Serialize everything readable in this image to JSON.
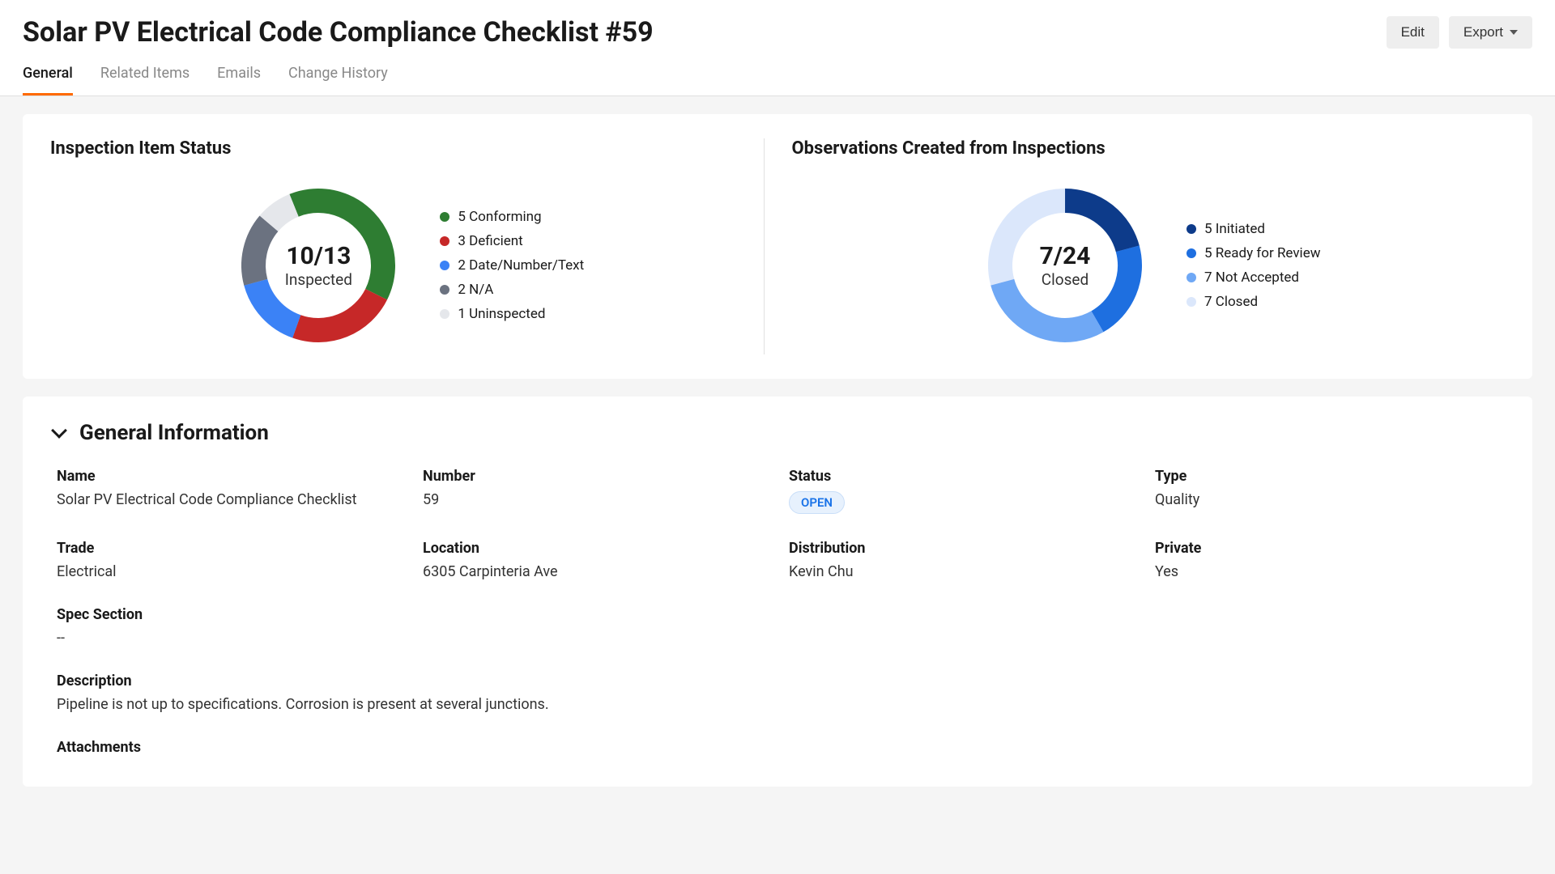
{
  "header": {
    "title": "Solar PV Electrical Code Compliance Checklist #59",
    "edit_label": "Edit",
    "export_label": "Export"
  },
  "tabs": {
    "general": "General",
    "related": "Related Items",
    "emails": "Emails",
    "history": "Change History",
    "active": "general"
  },
  "inspection_chart": {
    "title": "Inspection Item Status",
    "center_big": "10/13",
    "center_small": "Inspected",
    "total": 13,
    "series": [
      {
        "label": "5 Conforming",
        "value": 5,
        "color": "#2e7d32"
      },
      {
        "label": "3 Deficient",
        "value": 3,
        "color": "#c62828"
      },
      {
        "label": "2 Date/Number/Text",
        "value": 2,
        "color": "#3b82f6"
      },
      {
        "label": "2 N/A",
        "value": 2,
        "color": "#6b7280"
      },
      {
        "label": "1 Uninspected",
        "value": 1,
        "color": "#e5e7eb"
      }
    ],
    "donut_stroke": 30,
    "donut_radius": 80
  },
  "observations_chart": {
    "title": "Observations Created from Inspections",
    "center_big": "7/24",
    "center_small": "Closed",
    "total": 24,
    "series": [
      {
        "label": "5 Initiated",
        "value": 5,
        "color": "#0d3b8a"
      },
      {
        "label": "5 Ready for Review",
        "value": 5,
        "color": "#1e6fe0"
      },
      {
        "label": "7 Not Accepted",
        "value": 7,
        "color": "#6fa8f5"
      },
      {
        "label": "7 Closed",
        "value": 7,
        "color": "#dbe7fb"
      }
    ],
    "donut_stroke": 30,
    "donut_radius": 80
  },
  "general_info": {
    "section_title": "General Information",
    "fields": {
      "name": {
        "label": "Name",
        "value": "Solar PV Electrical Code Compliance Checklist"
      },
      "number": {
        "label": "Number",
        "value": "59"
      },
      "status": {
        "label": "Status",
        "value": "OPEN",
        "badge": "open"
      },
      "type": {
        "label": "Type",
        "value": "Quality"
      },
      "trade": {
        "label": "Trade",
        "value": "Electrical"
      },
      "location": {
        "label": "Location",
        "value": "6305 Carpinteria Ave"
      },
      "distribution": {
        "label": "Distribution",
        "value": "Kevin Chu"
      },
      "private": {
        "label": "Private",
        "value": "Yes"
      },
      "spec": {
        "label": "Spec Section",
        "value": "--"
      },
      "description": {
        "label": "Description",
        "value": "Pipeline is not up to specifications. Corrosion is present at several junctions."
      },
      "attachments": {
        "label": "Attachments",
        "value": ""
      }
    }
  }
}
